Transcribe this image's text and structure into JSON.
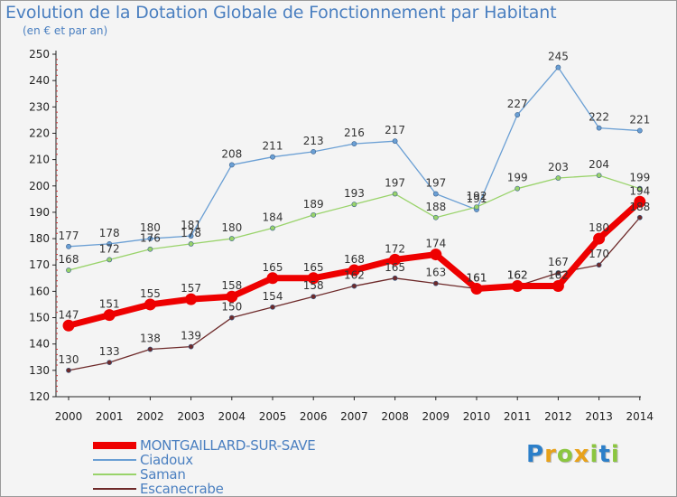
{
  "header": {
    "title": "Evolution de la Dotation Globale de Fonctionnement par Habitant",
    "subtitle": "(en € et par an)"
  },
  "logo": {
    "text": "Proxiti"
  },
  "chart_data": {
    "type": "line",
    "title": "Evolution de la Dotation Globale de Fonctionnement par Habitant",
    "subtitle": "(en € et par an)",
    "xlabel": "",
    "ylabel": "",
    "ylim": [
      120,
      250
    ],
    "yticks": [
      120,
      130,
      140,
      150,
      160,
      170,
      180,
      190,
      200,
      210,
      220,
      230,
      240,
      250
    ],
    "x": [
      "2000",
      "2001",
      "2002",
      "2003",
      "2004",
      "2005",
      "2006",
      "2007",
      "2008",
      "2009",
      "2010",
      "2011",
      "2012",
      "2013",
      "2014"
    ],
    "grid": false,
    "legend_position": "bottom-left",
    "series": [
      {
        "name": "Ciadoux",
        "color": "#6a9fd4",
        "values": [
          177,
          178,
          180,
          181,
          208,
          211,
          213,
          216,
          217,
          197,
          191,
          227,
          245,
          222,
          221
        ]
      },
      {
        "name": "Saman",
        "color": "#99d36a",
        "values": [
          168,
          172,
          176,
          178,
          180,
          184,
          189,
          193,
          197,
          188,
          192,
          199,
          203,
          204,
          199
        ]
      },
      {
        "name": "Escanecrabe",
        "color": "#6e2a2a",
        "values": [
          130,
          133,
          138,
          139,
          150,
          154,
          158,
          162,
          165,
          163,
          161,
          162,
          167,
          170,
          188
        ]
      },
      {
        "name": "MONTGAILLARD-SUR-SAVE",
        "color": "#ee0000",
        "values": [
          147,
          151,
          155,
          157,
          158,
          165,
          165,
          168,
          172,
          174,
          161,
          162,
          162,
          180,
          194
        ]
      }
    ],
    "legend_order": [
      "MONTGAILLARD-SUR-SAVE",
      "Ciadoux",
      "Saman",
      "Escanecrabe"
    ]
  }
}
